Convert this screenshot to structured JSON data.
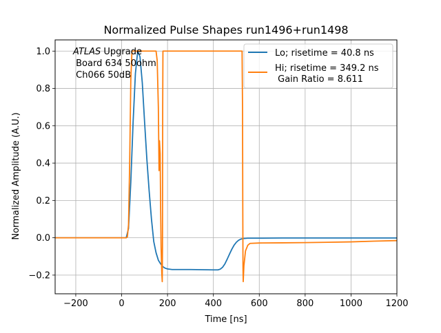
{
  "chart_data": {
    "type": "line",
    "title": "Normalized Pulse Shapes run1496+run1498",
    "xlabel": "Time [ns]",
    "ylabel": "Normalized Amplitude (A.U.)",
    "xlim": [
      -290,
      1200
    ],
    "ylim": [
      -0.3,
      1.06
    ],
    "xticks": [
      -200,
      0,
      200,
      400,
      600,
      800,
      1000,
      1200
    ],
    "yticks": [
      -0.2,
      0.0,
      0.2,
      0.4,
      0.6,
      0.8,
      1.0
    ],
    "xtick_labels": [
      "−200",
      "0",
      "200",
      "400",
      "600",
      "800",
      "1000",
      "1200"
    ],
    "ytick_labels": [
      "−0.2",
      "0.0",
      "0.2",
      "0.4",
      "0.6",
      "0.8",
      "1.0"
    ],
    "grid": true,
    "legend_position": "top-right",
    "annotation": {
      "line1_italic": "ATLAS",
      "line1_rest": " Upgrade",
      "line2": " Board 634 50ohm",
      "line3": " Ch066 50dB"
    },
    "series": [
      {
        "name": "Lo; risetime = 40.8 ns",
        "color": "#1f77b4",
        "x": [
          -290,
          0,
          20,
          30,
          40,
          50,
          60,
          70,
          80,
          90,
          100,
          110,
          120,
          130,
          140,
          150,
          160,
          170,
          180,
          190,
          200,
          220,
          250,
          300,
          350,
          400,
          420,
          430,
          440,
          450,
          460,
          470,
          480,
          490,
          500,
          510,
          520,
          530,
          550,
          600,
          700,
          800,
          1000,
          1200
        ],
        "y": [
          0.0,
          0.0,
          0.0,
          0.05,
          0.3,
          0.62,
          0.88,
          1.0,
          0.97,
          0.83,
          0.62,
          0.42,
          0.25,
          0.1,
          -0.02,
          -0.08,
          -0.12,
          -0.14,
          -0.155,
          -0.163,
          -0.167,
          -0.17,
          -0.17,
          -0.17,
          -0.171,
          -0.172,
          -0.172,
          -0.168,
          -0.158,
          -0.14,
          -0.115,
          -0.088,
          -0.062,
          -0.04,
          -0.024,
          -0.013,
          -0.007,
          -0.004,
          -0.002,
          -0.002,
          -0.001,
          -0.001,
          -0.001,
          -0.001
        ]
      },
      {
        "name": "Hi; risetime = 349.2 ns",
        "name_line2": " Gain Ratio = 8.611",
        "color": "#ff7f0e",
        "x": [
          -290,
          0,
          20,
          25,
          30,
          35,
          40,
          45,
          150,
          155,
          160,
          163,
          165,
          168,
          170,
          172,
          175,
          177,
          178,
          179,
          180,
          185,
          525,
          527,
          528,
          529,
          530,
          533,
          540,
          550,
          560,
          600,
          700,
          800,
          900,
          1000,
          1100,
          1200
        ],
        "y": [
          0.0,
          0.0,
          0.0,
          0.005,
          0.07,
          0.4,
          0.85,
          1.0,
          1.0,
          0.95,
          0.7,
          0.36,
          0.52,
          0.45,
          0.15,
          -0.05,
          -0.19,
          -0.235,
          -0.05,
          0.7,
          1.0,
          1.0,
          1.0,
          0.7,
          0.2,
          -0.15,
          -0.235,
          -0.15,
          -0.07,
          -0.04,
          -0.03,
          -0.028,
          -0.027,
          -0.026,
          -0.024,
          -0.022,
          -0.018,
          -0.015
        ]
      }
    ]
  }
}
